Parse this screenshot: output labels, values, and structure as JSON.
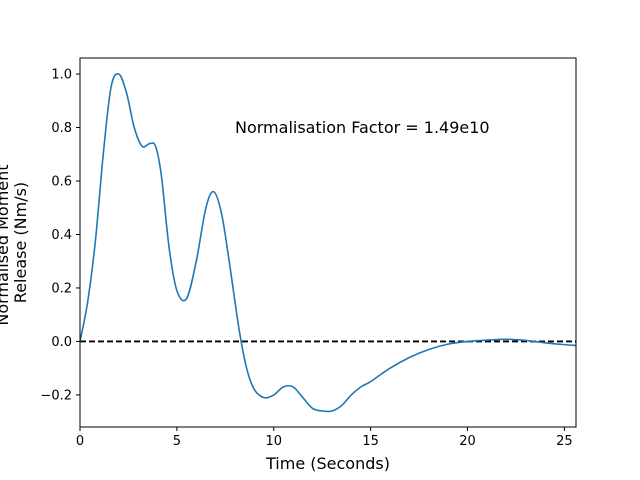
{
  "chart_data": {
    "type": "line",
    "title": "",
    "xlabel": "Time (Seconds)",
    "ylabel_lines": [
      "Normalised Moment",
      "Release (Nm/s)"
    ],
    "xlim": [
      0,
      25.6
    ],
    "ylim": [
      -0.32,
      1.06
    ],
    "xticks": [
      0,
      5,
      10,
      15,
      20,
      25
    ],
    "yticks": [
      -0.2,
      0.0,
      0.2,
      0.4,
      0.6,
      0.8,
      1.0
    ],
    "xtick_labels": [
      "0",
      "5",
      "10",
      "15",
      "20",
      "25"
    ],
    "ytick_labels": [
      "−0.2",
      "0.0",
      "0.2",
      "0.4",
      "0.6",
      "0.8",
      "1.0"
    ],
    "grid": false,
    "annotation": "Normalisation Factor = 1.49e10",
    "reference_line": {
      "y": 0.0,
      "style": "dashed",
      "color": "#000000"
    },
    "series": [
      {
        "color": "#1f77b4",
        "x": [
          0,
          0.4,
          0.8,
          1.2,
          1.6,
          2.0,
          2.4,
          2.8,
          3.2,
          3.6,
          3.9,
          4.2,
          4.6,
          5.0,
          5.5,
          6.0,
          6.5,
          6.9,
          7.3,
          7.7,
          8.2,
          8.6,
          9.0,
          9.5,
          10.0,
          10.5,
          11.0,
          11.5,
          12.0,
          12.5,
          13.0,
          13.5,
          14.0,
          14.5,
          15.0,
          16.0,
          17.0,
          18.0,
          19.0,
          20.0,
          21.0,
          22.0,
          23.0,
          24.0,
          25.0,
          25.6
        ],
        "y": [
          0.0,
          0.15,
          0.38,
          0.7,
          0.95,
          1.0,
          0.93,
          0.8,
          0.73,
          0.74,
          0.73,
          0.62,
          0.35,
          0.19,
          0.16,
          0.3,
          0.5,
          0.56,
          0.48,
          0.3,
          0.05,
          -0.1,
          -0.18,
          -0.21,
          -0.2,
          -0.17,
          -0.17,
          -0.21,
          -0.25,
          -0.26,
          -0.26,
          -0.24,
          -0.2,
          -0.17,
          -0.15,
          -0.1,
          -0.06,
          -0.03,
          -0.01,
          0.0,
          0.005,
          0.008,
          0.004,
          -0.005,
          -0.012,
          -0.015
        ]
      }
    ]
  }
}
